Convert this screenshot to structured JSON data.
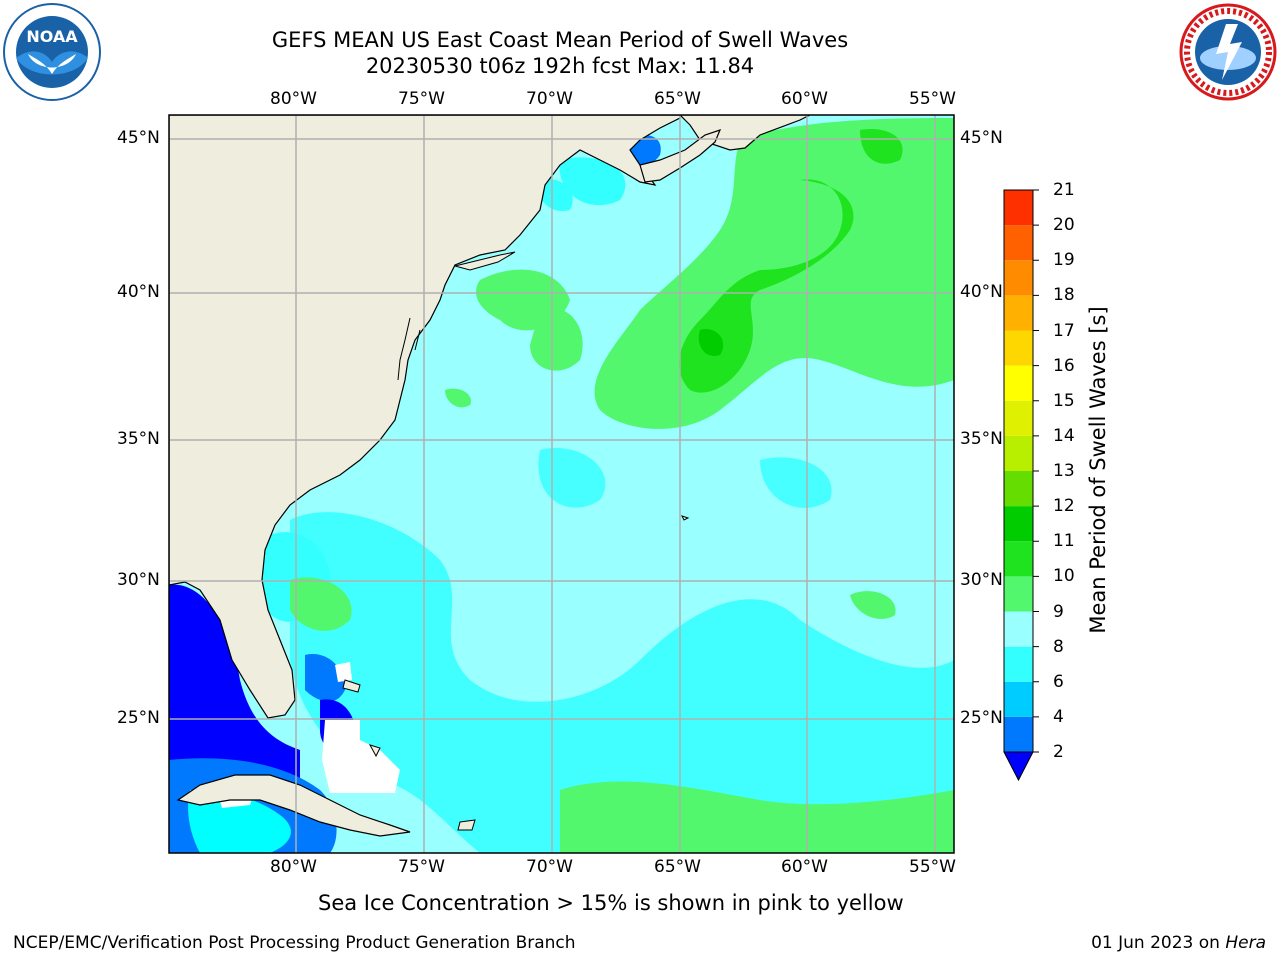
{
  "header": {
    "title_line1": "GEFS MEAN US East Coast Mean Period of Swell Waves",
    "title_line2": "20230530 t06z 192h fcst   Max: 11.84"
  },
  "logos": {
    "left": {
      "icon": "noaa-logo-icon",
      "text": "NOAA",
      "color": "#1a62a8"
    },
    "right": {
      "icon": "nws-logo-icon",
      "text": "NATIONAL WEATHER SERVICE",
      "color": "#d7191c"
    }
  },
  "map": {
    "longitude_labels": [
      "80°W",
      "75°W",
      "70°W",
      "65°W",
      "60°W",
      "55°W"
    ],
    "latitude_labels": [
      "45°N",
      "40°N",
      "35°N",
      "30°N",
      "25°N"
    ],
    "extent": {
      "lon_min": -85,
      "lon_max": -54,
      "lat_min": 20.5,
      "lat_max": 46
    },
    "colors": {
      "land": "#efedde",
      "grid": "#b0b0b0",
      "coast": "#000000"
    }
  },
  "colorbar": {
    "title": "Mean Period of Swell Waves [s]",
    "tick_labels": [
      "2",
      "4",
      "6",
      "8",
      "9",
      "10",
      "11",
      "12",
      "13",
      "14",
      "15",
      "16",
      "17",
      "18",
      "19",
      "20",
      "21"
    ],
    "colors": [
      "#0079ff",
      "#00ccff",
      "#33ffff",
      "#99ffff",
      "#52f76d",
      "#20e320",
      "#00cc00",
      "#66dd00",
      "#b8ee00",
      "#dff000",
      "#ffff00",
      "#ffd700",
      "#ffb000",
      "#ff8c00",
      "#ff6000",
      "#ff3000",
      "#ff0000"
    ],
    "under_color": "#0000ff"
  },
  "footer": {
    "note": "Sea Ice Concentration > 15% is shown in pink to yellow",
    "credit": "NCEP/EMC/Verification Post Processing Product Generation Branch",
    "date_prefix": "01 Jun 2023 on ",
    "date_host": "Hera"
  }
}
